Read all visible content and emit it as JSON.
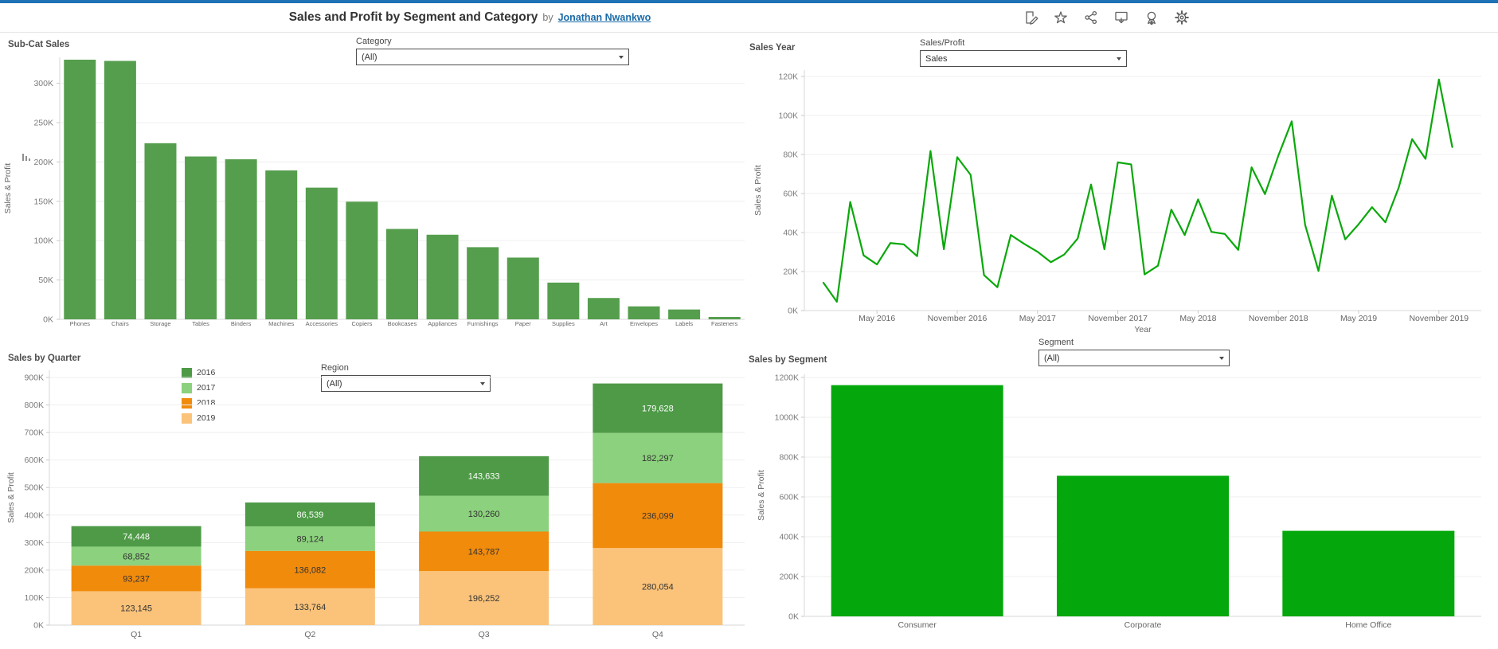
{
  "header": {
    "title": "Sales and Profit by Segment and Category",
    "by_text": "by",
    "author": "Jonathan Nwankwo",
    "toolbar": [
      "edit",
      "favorite",
      "share",
      "download",
      "award",
      "settings"
    ]
  },
  "filters": {
    "category": {
      "label": "Category",
      "value": "(All)"
    },
    "sales_profit": {
      "label": "Sales/Profit",
      "value": "Sales"
    },
    "region": {
      "label": "Region",
      "value": "(All)"
    },
    "segment": {
      "label": "Segment",
      "value": "(All)"
    }
  },
  "colors": {
    "accent_bar": "#1F72B5",
    "link": "#1B6BA8",
    "subcat_bar": "#559E4D",
    "line": "#0AA80A",
    "segment_bar": "#05A80C"
  },
  "chart_data": [
    {
      "id": "subcat",
      "type": "bar",
      "title": "Sub-Cat Sales",
      "ylabel": "Sales & Profit",
      "categories": [
        "Phones",
        "Chairs",
        "Storage",
        "Tables",
        "Binders",
        "Machines",
        "Accessories",
        "Copiers",
        "Bookcases",
        "Appliances",
        "Furnishings",
        "Paper",
        "Supplies",
        "Art",
        "Envelopes",
        "Labels",
        "Fasteners"
      ],
      "values": [
        330007,
        328449,
        223844,
        206966,
        203413,
        189239,
        167380,
        149528,
        114880,
        107532,
        91705,
        78479,
        46674,
        27119,
        16476,
        12486,
        3024
      ],
      "ylim": [
        0,
        333000
      ],
      "ytick_step": 50000,
      "ytick_max": 300000,
      "bar_color": "#559E4D",
      "grid": true,
      "sorted": "descending"
    },
    {
      "id": "sales_year",
      "type": "line",
      "title": "Sales Year",
      "ylabel": "Sales & Profit",
      "xlabel": "Year",
      "x_start": "January 2016",
      "x_interval": "month",
      "values": [
        14237,
        4520,
        55691,
        28295,
        23648,
        34595,
        33946,
        27909,
        81777,
        31453,
        78629,
        69545,
        18174,
        11951,
        38726,
        34195,
        30131,
        24797,
        28765,
        36898,
        64596,
        31404,
        75973,
        74920,
        18542,
        22979,
        51716,
        38750,
        56988,
        40344,
        39262,
        31116,
        73410,
        59688,
        79412,
        96999,
        43971,
        20301,
        58872,
        36522,
        44261,
        52982,
        45264,
        63121,
        87867,
        77777,
        118448,
        83829
      ],
      "xticks": [
        {
          "index": 4,
          "label": "May 2016"
        },
        {
          "index": 10,
          "label": "November 2016"
        },
        {
          "index": 16,
          "label": "May 2017"
        },
        {
          "index": 22,
          "label": "November 2017"
        },
        {
          "index": 28,
          "label": "May 2018"
        },
        {
          "index": 34,
          "label": "November 2018"
        },
        {
          "index": 40,
          "label": "May 2019"
        },
        {
          "index": 46,
          "label": "November 2019"
        }
      ],
      "ylim": [
        0,
        123000
      ],
      "ytick_step": 20000,
      "ytick_max": 120000,
      "line_color": "#0AA80A",
      "grid": true
    },
    {
      "id": "quarter",
      "type": "stacked_bar",
      "title": "Sales by Quarter",
      "ylabel": "Sales & Profit",
      "categories": [
        "Q1",
        "Q2",
        "Q3",
        "Q4"
      ],
      "series": [
        {
          "name": "2016",
          "color": "#4E9A47",
          "label_color": "#FFFFFF",
          "values": [
            74448,
            86539,
            143633,
            179628
          ]
        },
        {
          "name": "2017",
          "color": "#8CD17D",
          "label_color": "#333333",
          "values": [
            68852,
            89124,
            130260,
            182297
          ]
        },
        {
          "name": "2018",
          "color": "#F18B0C",
          "label_color": "#333333",
          "values": [
            93237,
            136082,
            143787,
            236099
          ]
        },
        {
          "name": "2019",
          "color": "#FBC37A",
          "label_color": "#333333",
          "values": [
            123145,
            133764,
            196252,
            280054
          ]
        }
      ],
      "stack_order_top_to_bottom": [
        "2016",
        "2017",
        "2018",
        "2019"
      ],
      "ylim": [
        0,
        900000
      ],
      "ytick_step": 100000,
      "ytick_max": 900000,
      "legend_position": "top-left-inside",
      "grid": true
    },
    {
      "id": "segment",
      "type": "bar",
      "title": "Sales by Segment",
      "ylabel": "Sales & Profit",
      "categories": [
        "Consumer",
        "Corporate",
        "Home Office"
      ],
      "values": [
        1161401,
        706146,
        429653
      ],
      "ylim": [
        0,
        1230000
      ],
      "ytick_step": 200000,
      "ytick_max": 1200000,
      "bar_color": "#05A80C",
      "grid": true
    }
  ]
}
